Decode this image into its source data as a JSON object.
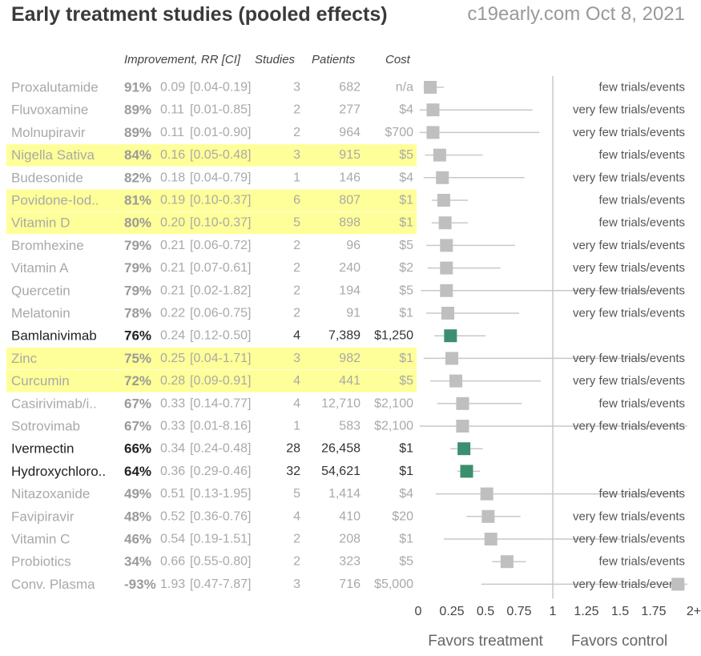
{
  "title": "Early treatment studies (pooled effects)",
  "subtitle": "c19early.com Oct 8, 2021",
  "headers": {
    "improvement": "Improvement, RR [CI]",
    "studies": "Studies",
    "patients": "Patients",
    "cost": "Cost"
  },
  "colors": {
    "highlight": "#ffff99",
    "significant_marker": "#3c8f6e",
    "marker": "#bfbfbf",
    "faded_text": "#a9a9a9",
    "dark_text": "#222222",
    "line": "#c8c8c8"
  },
  "chart_data": {
    "type": "forest",
    "x_ticks": [
      "0",
      "0.25",
      "0.5",
      "0.75",
      "1",
      "1.25",
      "1.5",
      "1.75",
      "2+"
    ],
    "xlim": [
      0,
      2
    ],
    "reference_line": 1,
    "xlabel_left": "Favors treatment",
    "xlabel_right": "Favors control",
    "rows": [
      {
        "name": "Proxalutamide",
        "improvement": "91%",
        "rr": 0.09,
        "rr_text": "0.09",
        "ci": [
          0.04,
          0.19
        ],
        "ci_text": "[0.04-0.19]",
        "studies": "3",
        "patients": "682",
        "cost": "n/a",
        "note": "few trials/events",
        "highlight": false,
        "significant": false
      },
      {
        "name": "Fluvoxamine",
        "improvement": "89%",
        "rr": 0.11,
        "rr_text": "0.11",
        "ci": [
          0.01,
          0.85
        ],
        "ci_text": "[0.01-0.85]",
        "studies": "2",
        "patients": "277",
        "cost": "$4",
        "note": "very few trials/events",
        "highlight": false,
        "significant": false
      },
      {
        "name": "Molnupiravir",
        "improvement": "89%",
        "rr": 0.11,
        "rr_text": "0.11",
        "ci": [
          0.01,
          0.9
        ],
        "ci_text": "[0.01-0.90]",
        "studies": "2",
        "patients": "964",
        "cost": "$700",
        "note": "very few trials/events",
        "highlight": false,
        "significant": false
      },
      {
        "name": "Nigella Sativa",
        "improvement": "84%",
        "rr": 0.16,
        "rr_text": "0.16",
        "ci": [
          0.05,
          0.48
        ],
        "ci_text": "[0.05-0.48]",
        "studies": "3",
        "patients": "915",
        "cost": "$5",
        "note": "few trials/events",
        "highlight": true,
        "significant": false
      },
      {
        "name": "Budesonide",
        "improvement": "82%",
        "rr": 0.18,
        "rr_text": "0.18",
        "ci": [
          0.04,
          0.79
        ],
        "ci_text": "[0.04-0.79]",
        "studies": "1",
        "patients": "146",
        "cost": "$4",
        "note": "very few trials/events",
        "highlight": false,
        "significant": false
      },
      {
        "name": "Povidone-Iod..",
        "improvement": "81%",
        "rr": 0.19,
        "rr_text": "0.19",
        "ci": [
          0.1,
          0.37
        ],
        "ci_text": "[0.10-0.37]",
        "studies": "6",
        "patients": "807",
        "cost": "$1",
        "note": "few trials/events",
        "highlight": true,
        "significant": false
      },
      {
        "name": "Vitamin D",
        "improvement": "80%",
        "rr": 0.2,
        "rr_text": "0.20",
        "ci": [
          0.1,
          0.37
        ],
        "ci_text": "[0.10-0.37]",
        "studies": "5",
        "patients": "898",
        "cost": "$1",
        "note": "few trials/events",
        "highlight": true,
        "significant": false
      },
      {
        "name": "Bromhexine",
        "improvement": "79%",
        "rr": 0.21,
        "rr_text": "0.21",
        "ci": [
          0.06,
          0.72
        ],
        "ci_text": "[0.06-0.72]",
        "studies": "2",
        "patients": "96",
        "cost": "$5",
        "note": "very few trials/events",
        "highlight": false,
        "significant": false
      },
      {
        "name": "Vitamin A",
        "improvement": "79%",
        "rr": 0.21,
        "rr_text": "0.21",
        "ci": [
          0.07,
          0.61
        ],
        "ci_text": "[0.07-0.61]",
        "studies": "2",
        "patients": "240",
        "cost": "$2",
        "note": "very few trials/events",
        "highlight": false,
        "significant": false
      },
      {
        "name": "Quercetin",
        "improvement": "79%",
        "rr": 0.21,
        "rr_text": "0.21",
        "ci": [
          0.02,
          1.82
        ],
        "ci_text": "[0.02-1.82]",
        "studies": "2",
        "patients": "194",
        "cost": "$5",
        "note": "very few trials/events",
        "highlight": false,
        "significant": false
      },
      {
        "name": "Melatonin",
        "improvement": "78%",
        "rr": 0.22,
        "rr_text": "0.22",
        "ci": [
          0.06,
          0.75
        ],
        "ci_text": "[0.06-0.75]",
        "studies": "2",
        "patients": "91",
        "cost": "$1",
        "note": "very few trials/events",
        "highlight": false,
        "significant": false
      },
      {
        "name": "Bamlanivimab",
        "improvement": "76%",
        "rr": 0.24,
        "rr_text": "0.24",
        "ci": [
          0.12,
          0.5
        ],
        "ci_text": "[0.12-0.50]",
        "studies": "4",
        "patients": "7,389",
        "cost": "$1,250",
        "note": "",
        "highlight": false,
        "significant": true
      },
      {
        "name": "Zinc",
        "improvement": "75%",
        "rr": 0.25,
        "rr_text": "0.25",
        "ci": [
          0.04,
          1.71
        ],
        "ci_text": "[0.04-1.71]",
        "studies": "3",
        "patients": "982",
        "cost": "$1",
        "note": "very few trials/events",
        "highlight": true,
        "significant": false
      },
      {
        "name": "Curcumin",
        "improvement": "72%",
        "rr": 0.28,
        "rr_text": "0.28",
        "ci": [
          0.09,
          0.91
        ],
        "ci_text": "[0.09-0.91]",
        "studies": "4",
        "patients": "441",
        "cost": "$5",
        "note": "very few trials/events",
        "highlight": true,
        "significant": false
      },
      {
        "name": "Casirivimab/i..",
        "improvement": "67%",
        "rr": 0.33,
        "rr_text": "0.33",
        "ci": [
          0.14,
          0.77
        ],
        "ci_text": "[0.14-0.77]",
        "studies": "4",
        "patients": "12,710",
        "cost": "$2,100",
        "note": "few trials/events",
        "highlight": false,
        "significant": false
      },
      {
        "name": "Sotrovimab",
        "improvement": "67%",
        "rr": 0.33,
        "rr_text": "0.33",
        "ci": [
          0.01,
          8.16
        ],
        "ci_text": "[0.01-8.16]",
        "studies": "1",
        "patients": "583",
        "cost": "$2,100",
        "note": "very few trials/events",
        "highlight": false,
        "significant": false
      },
      {
        "name": "Ivermectin",
        "improvement": "66%",
        "rr": 0.34,
        "rr_text": "0.34",
        "ci": [
          0.24,
          0.48
        ],
        "ci_text": "[0.24-0.48]",
        "studies": "28",
        "patients": "26,458",
        "cost": "$1",
        "note": "",
        "highlight": false,
        "significant": true
      },
      {
        "name": "Hydroxychloro..",
        "improvement": "64%",
        "rr": 0.36,
        "rr_text": "0.36",
        "ci": [
          0.29,
          0.46
        ],
        "ci_text": "[0.29-0.46]",
        "studies": "32",
        "patients": "54,621",
        "cost": "$1",
        "note": "",
        "highlight": false,
        "significant": true
      },
      {
        "name": "Nitazoxanide",
        "improvement": "49%",
        "rr": 0.51,
        "rr_text": "0.51",
        "ci": [
          0.13,
          1.95
        ],
        "ci_text": "[0.13-1.95]",
        "studies": "5",
        "patients": "1,414",
        "cost": "$4",
        "note": "few trials/events",
        "highlight": false,
        "significant": false
      },
      {
        "name": "Favipiravir",
        "improvement": "48%",
        "rr": 0.52,
        "rr_text": "0.52",
        "ci": [
          0.36,
          0.76
        ],
        "ci_text": "[0.36-0.76]",
        "studies": "4",
        "patients": "410",
        "cost": "$20",
        "note": "very few trials/events",
        "highlight": false,
        "significant": false
      },
      {
        "name": "Vitamin C",
        "improvement": "46%",
        "rr": 0.54,
        "rr_text": "0.54",
        "ci": [
          0.19,
          1.51
        ],
        "ci_text": "[0.19-1.51]",
        "studies": "2",
        "patients": "208",
        "cost": "$1",
        "note": "very few trials/events",
        "highlight": false,
        "significant": false
      },
      {
        "name": "Probiotics",
        "improvement": "34%",
        "rr": 0.66,
        "rr_text": "0.66",
        "ci": [
          0.55,
          0.8
        ],
        "ci_text": "[0.55-0.80]",
        "studies": "2",
        "patients": "323",
        "cost": "$5",
        "note": "few trials/events",
        "highlight": false,
        "significant": false
      },
      {
        "name": "Conv. Plasma",
        "improvement": "-93%",
        "rr": 1.93,
        "rr_text": "1.93",
        "ci": [
          0.47,
          7.87
        ],
        "ci_text": "[0.47-7.87]",
        "studies": "3",
        "patients": "716",
        "cost": "$5,000",
        "note": "very few trials/events",
        "highlight": false,
        "significant": false
      }
    ]
  }
}
